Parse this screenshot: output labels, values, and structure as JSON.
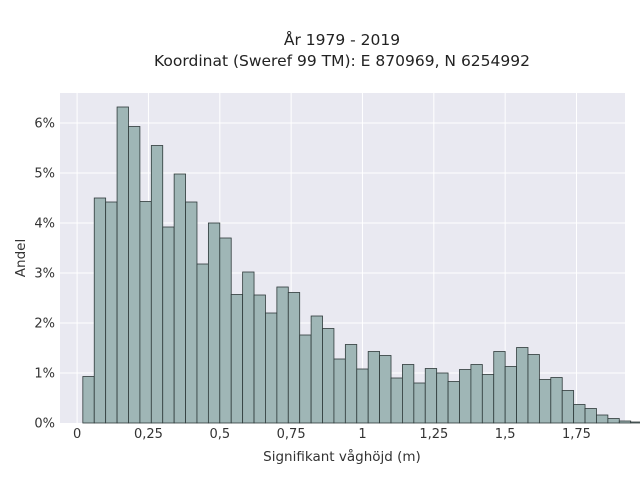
{
  "chart_data": {
    "type": "bar",
    "title": "År 1979 - 2019",
    "subtitle": "Koordinat (Sweref 99 TM): E 870969, N 6254992",
    "xlabel": "Signifikant våghöjd (m)",
    "ylabel": "Andel",
    "xlim": [
      -0.06,
      1.92
    ],
    "ylim": [
      0,
      6.6
    ],
    "x_ticks": [
      {
        "value": 0,
        "label": "0"
      },
      {
        "value": 0.25,
        "label": "0,25"
      },
      {
        "value": 0.5,
        "label": "0,5"
      },
      {
        "value": 0.75,
        "label": "0,75"
      },
      {
        "value": 1.0,
        "label": "1"
      },
      {
        "value": 1.25,
        "label": "1,25"
      },
      {
        "value": 1.5,
        "label": "1,5"
      },
      {
        "value": 1.75,
        "label": "1,75"
      }
    ],
    "y_ticks": [
      {
        "value": 0,
        "label": "0%"
      },
      {
        "value": 1,
        "label": "1%"
      },
      {
        "value": 2,
        "label": "2%"
      },
      {
        "value": 3,
        "label": "3%"
      },
      {
        "value": 4,
        "label": "4%"
      },
      {
        "value": 5,
        "label": "5%"
      },
      {
        "value": 6,
        "label": "6%"
      }
    ],
    "bin_start": 0.02,
    "bin_width": 0.04,
    "values": [
      0.93,
      4.5,
      4.42,
      6.32,
      5.93,
      4.43,
      5.55,
      3.92,
      4.98,
      4.42,
      3.18,
      4.0,
      3.7,
      2.57,
      3.02,
      2.56,
      2.2,
      2.72,
      2.61,
      1.76,
      2.14,
      1.89,
      1.28,
      1.57,
      1.08,
      1.43,
      1.35,
      0.9,
      1.17,
      0.8,
      1.09,
      1.0,
      0.83,
      1.07,
      1.17,
      0.97,
      1.43,
      1.13,
      1.51,
      1.37,
      0.87,
      0.91,
      0.65,
      0.37,
      0.29,
      0.16,
      0.09,
      0.04,
      0.02,
      0.01,
      0.01
    ],
    "grid": true,
    "colors": {
      "bar_fill": "#9fb6b6",
      "bar_stroke": "#2e3a3a",
      "plot_bg": "#e9e9f1",
      "grid": "#ffffff"
    }
  }
}
